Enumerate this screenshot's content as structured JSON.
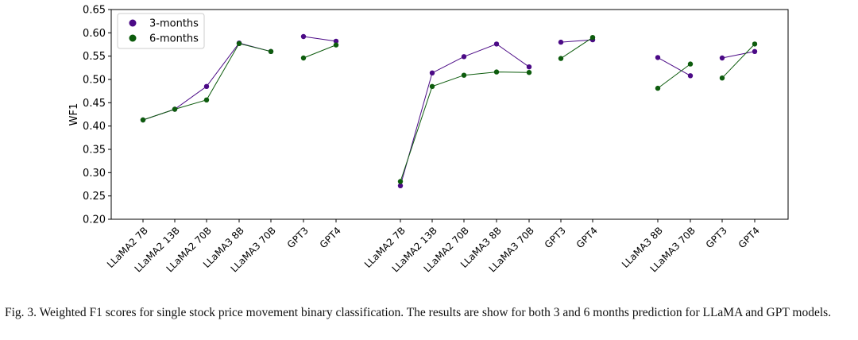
{
  "chart_data": {
    "type": "line",
    "ylabel": "WF1",
    "ylim": [
      0.2,
      0.65
    ],
    "yticks": [
      "0.20",
      "0.25",
      "0.30",
      "0.35",
      "0.40",
      "0.45",
      "0.50",
      "0.55",
      "0.60",
      "0.65"
    ],
    "grid": false,
    "legend_position": "top-left",
    "x": [
      "LLaMA2 7B",
      "LLaMA2 13B",
      "LLaMA2 70B",
      "LLaMA3 8B",
      "LLaMA3 70B",
      "GPT3",
      "GPT4",
      "LLaMA2 7B",
      "LLaMA2 13B",
      "LLaMA2 70B",
      "LLaMA3 8B",
      "LLaMA3 70B",
      "GPT3",
      "GPT4",
      "LLaMA3 8B",
      "LLaMA3 70B",
      "GPT3",
      "GPT4"
    ],
    "segments": [
      [
        0,
        4
      ],
      [
        5,
        6
      ],
      [
        7,
        11
      ],
      [
        12,
        13
      ],
      [
        14,
        15
      ],
      [
        16,
        17
      ]
    ],
    "series": [
      {
        "name": "3-months",
        "color": "#4b0a86",
        "values": [
          0.413,
          0.436,
          0.485,
          0.578,
          0.56,
          0.592,
          0.582,
          0.272,
          0.514,
          0.549,
          0.576,
          0.527,
          0.58,
          0.585,
          0.547,
          0.508,
          0.546,
          0.56
        ]
      },
      {
        "name": "6-months",
        "color": "#0d5c0d",
        "values": [
          0.413,
          0.436,
          0.456,
          0.577,
          0.56,
          0.546,
          0.574,
          0.281,
          0.485,
          0.509,
          0.516,
          0.515,
          0.545,
          0.59,
          0.481,
          0.533,
          0.503,
          0.576
        ]
      }
    ]
  },
  "caption": "Fig. 3.  Weighted F1 scores for single stock price movement binary classification. The results are show for both 3 and 6 months prediction for LLaMA and GPT models."
}
